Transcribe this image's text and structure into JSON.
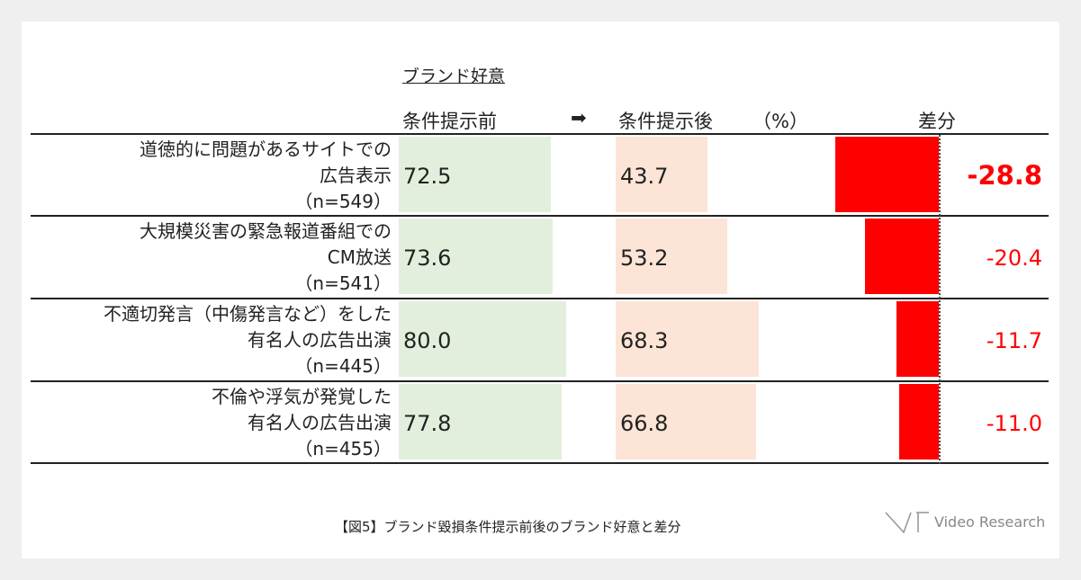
{
  "header": {
    "section_title": "ブランド好意",
    "col_before": "条件提示前",
    "arrow": "➡",
    "col_after": "条件提示後",
    "unit": "（%）",
    "col_diff": "差分"
  },
  "rows": [
    {
      "label_lines": [
        "道徳的に問題があるサイトでの",
        "広告表示",
        "（n=549）"
      ],
      "before": "72.5",
      "after": "43.7",
      "diff": "-28.8"
    },
    {
      "label_lines": [
        "大規模災害の緊急報道番組での",
        "CM放送",
        "（n=541）"
      ],
      "before": "73.6",
      "after": "53.2",
      "diff": "-20.4"
    },
    {
      "label_lines": [
        "不適切発言（中傷発言など）をした",
        "有名人の広告出演",
        "（n=445）"
      ],
      "before": "80.0",
      "after": "68.3",
      "diff": "-11.7"
    },
    {
      "label_lines": [
        "不倫や浮気が発覚した",
        "有名人の広告出演",
        "（n=455）"
      ],
      "before": "77.8",
      "after": "66.8",
      "diff": "-11.0"
    }
  ],
  "caption": "【図5】ブランド毀損条件提示前後のブランド好意と差分",
  "logo": {
    "text": "Video Research"
  },
  "colors": {
    "before": "#e2efdc",
    "after": "#fce4d6",
    "diff": "#ff0000",
    "diff_text": "#ff0000"
  },
  "chart_data": {
    "type": "bar",
    "title": "ブランド好意",
    "categories": [
      "道徳的に問題があるサイトでの広告表示（n=549）",
      "大規模災害の緊急報道番組でのCM放送（n=541）",
      "不適切発言（中傷発言など）をした有名人の広告出演（n=445）",
      "不倫や浮気が発覚した有名人の広告出演（n=455）"
    ],
    "series": [
      {
        "name": "条件提示前",
        "values": [
          72.5,
          73.6,
          80.0,
          77.8
        ]
      },
      {
        "name": "条件提示後",
        "values": [
          43.7,
          53.2,
          68.3,
          66.8
        ]
      },
      {
        "name": "差分",
        "values": [
          -28.8,
          -20.4,
          -11.7,
          -11.0
        ]
      }
    ],
    "ylabel": "（%）",
    "orientation": "horizontal"
  }
}
